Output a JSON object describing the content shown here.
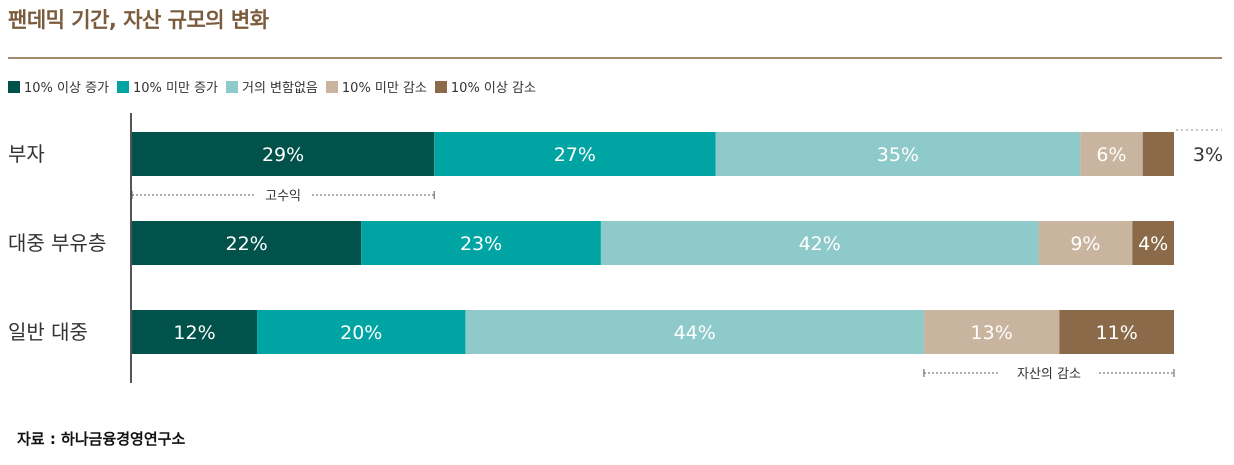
{
  "title": "팬데믹 기간, 자산 규모의 변화",
  "source": "자료 : 하나금융경영연구소",
  "chart_data": {
    "type": "bar",
    "orientation": "horizontal",
    "stacked": true,
    "categories": [
      "부자",
      "대중 부유층",
      "일반 대중"
    ],
    "series": [
      {
        "name": "10% 이상 증가",
        "color": "#00524a",
        "values": [
          29,
          22,
          12
        ]
      },
      {
        "name": "10% 미만 증가",
        "color": "#00a5a3",
        "values": [
          27,
          23,
          20
        ]
      },
      {
        "name": "거의 변함없음",
        "color": "#8ecac9",
        "values": [
          35,
          42,
          44
        ]
      },
      {
        "name": "10% 미만 감소",
        "color": "#c9b49f",
        "values": [
          6,
          9,
          13
        ]
      },
      {
        "name": "10% 이상 감소",
        "color": "#8a6a48",
        "values": [
          3,
          4,
          11
        ]
      }
    ],
    "data_labels": [
      [
        "29%",
        "27%",
        "35%",
        "6%",
        "3%"
      ],
      [
        "22%",
        "23%",
        "42%",
        "9%",
        "4%"
      ],
      [
        "12%",
        "20%",
        "44%",
        "13%",
        "11%"
      ]
    ],
    "legend_position": "top-left",
    "annotations": [
      {
        "text": "고수익",
        "category": "부자",
        "series_range": [
          0,
          0
        ]
      },
      {
        "text": "자산의 감소",
        "category": "일반 대중",
        "series_range": [
          3,
          4
        ]
      }
    ]
  }
}
